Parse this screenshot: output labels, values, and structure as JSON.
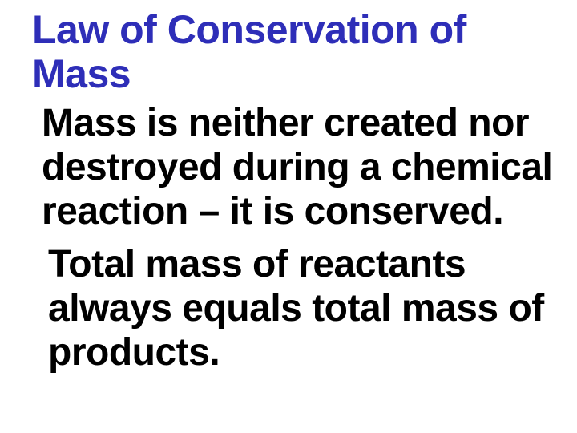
{
  "slide": {
    "title": "Law of Conservation of Mass",
    "title_color": "#2e2eb8",
    "title_fontsize": 50,
    "paragraph1": "Mass is neither created nor destroyed during a chemical reaction – it is conserved.",
    "paragraph1_color": "#000000",
    "paragraph1_fontsize": 48,
    "paragraph2": "Total mass of reactants always equals total mass of products.",
    "paragraph2_color": "#000000",
    "paragraph2_fontsize": 48,
    "background_color": "#ffffff",
    "font_family": "Arial"
  }
}
